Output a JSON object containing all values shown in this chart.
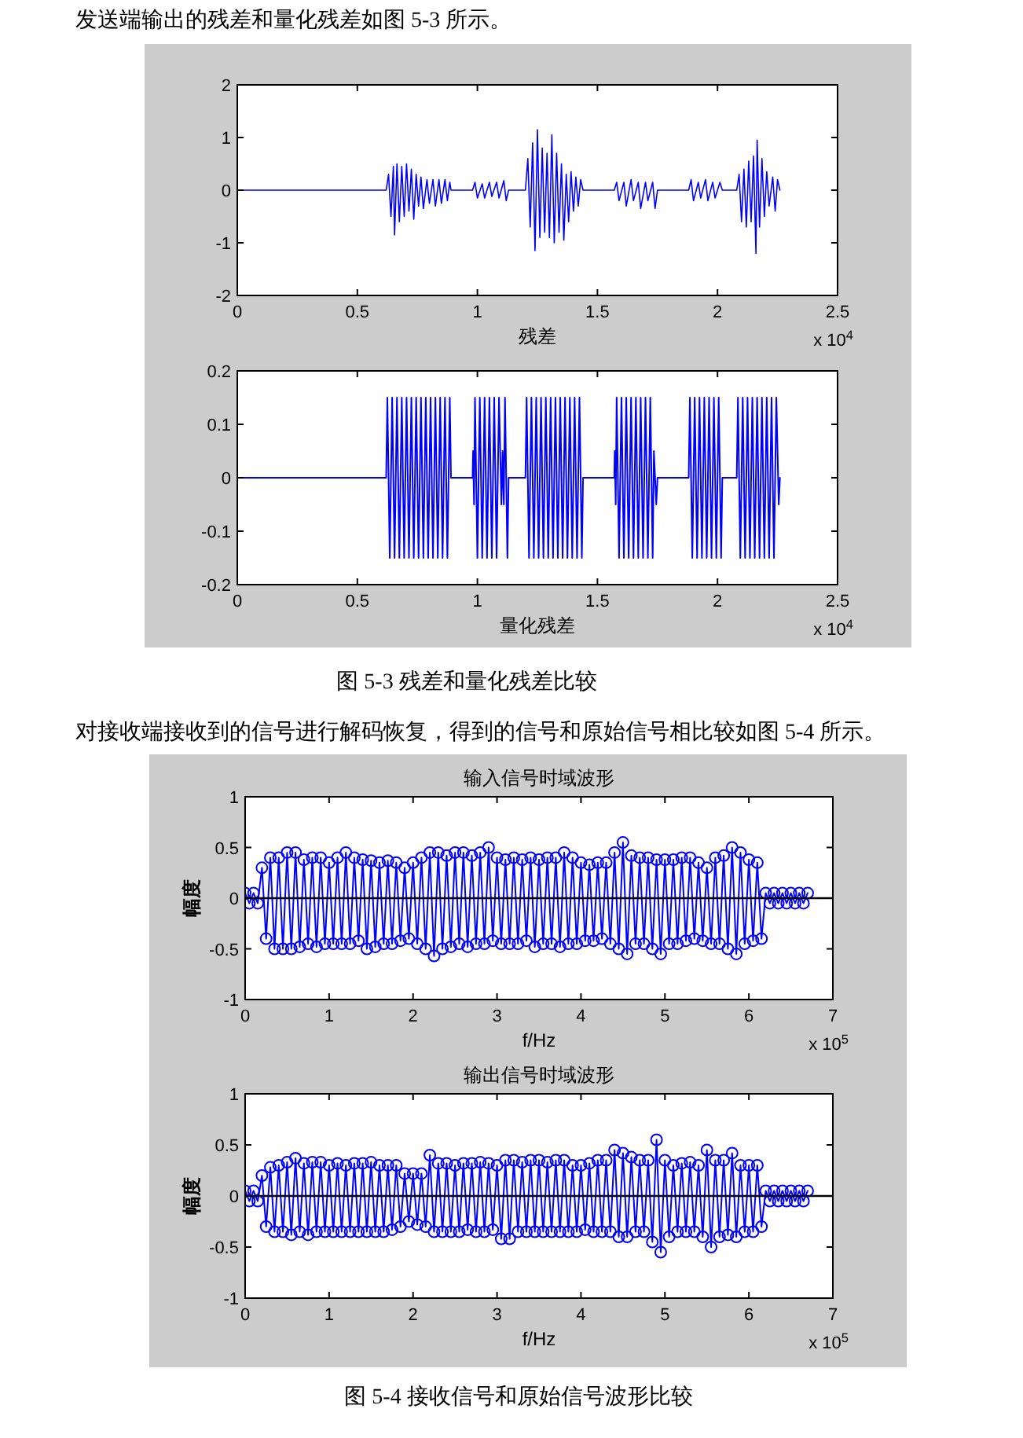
{
  "chart_data": [
    {
      "type": "line",
      "xlabel": "残差",
      "xlim": [
        0,
        2.5
      ],
      "ylim": [
        -2,
        2
      ],
      "xticks": [
        0,
        0.5,
        1,
        1.5,
        2,
        2.5
      ],
      "yticks": [
        -2,
        -1,
        0,
        1,
        2
      ],
      "annotations": [
        "x 10$^{4}$",
        "发送端输出的残差和量化残差如图 5-3 所示。"
      ],
      "series": [
        {
          "color": "#0000ff",
          "x": [
            0,
            0.62,
            0.63,
            0.64,
            0.65,
            0.655,
            0.665,
            0.675,
            0.685,
            0.695,
            0.705,
            0.715,
            0.725,
            0.735,
            0.745,
            0.755,
            0.765,
            0.775,
            0.79,
            0.8,
            0.815,
            0.825,
            0.84,
            0.85,
            0.865,
            0.875,
            0.885,
            0.89,
            0.98,
            0.99,
            1.0,
            1.02,
            1.03,
            1.05,
            1.06,
            1.08,
            1.09,
            1.11,
            1.12,
            1.13,
            1.2,
            1.21,
            1.22,
            1.23,
            1.24,
            1.25,
            1.26,
            1.27,
            1.28,
            1.29,
            1.3,
            1.31,
            1.32,
            1.33,
            1.34,
            1.35,
            1.36,
            1.37,
            1.38,
            1.39,
            1.4,
            1.41,
            1.42,
            1.43,
            1.44,
            1.57,
            1.58,
            1.59,
            1.61,
            1.62,
            1.64,
            1.65,
            1.67,
            1.68,
            1.7,
            1.71,
            1.73,
            1.74,
            1.75,
            1.88,
            1.89,
            1.9,
            1.92,
            1.93,
            1.95,
            1.96,
            1.98,
            1.99,
            2.01,
            2.02,
            2.08,
            2.09,
            2.1,
            2.11,
            2.12,
            2.13,
            2.14,
            2.15,
            2.16,
            2.165,
            2.175,
            2.185,
            2.195,
            2.205,
            2.215,
            2.23,
            2.24,
            2.25,
            2.26
          ],
          "values": [
            0,
            0,
            0.3,
            -0.5,
            0.45,
            -0.85,
            0.5,
            -0.6,
            0.45,
            -0.5,
            0.5,
            -0.4,
            0.4,
            -0.55,
            0.3,
            -0.3,
            0.25,
            -0.35,
            0.2,
            -0.25,
            0.2,
            -0.3,
            0.2,
            -0.25,
            0.2,
            -0.2,
            0.15,
            0,
            0,
            0.15,
            -0.15,
            0.12,
            -0.15,
            0.15,
            -0.12,
            0.15,
            -0.15,
            0.18,
            -0.2,
            0,
            0,
            0.6,
            -0.7,
            0.9,
            -1.15,
            1.15,
            -0.9,
            0.8,
            -0.8,
            0.7,
            -0.9,
            1.05,
            -1.0,
            0.7,
            -0.8,
            0.5,
            -0.95,
            0.3,
            -0.6,
            0.35,
            -0.4,
            0.25,
            -0.3,
            0.2,
            0,
            0,
            0.15,
            -0.2,
            0.15,
            -0.3,
            0.2,
            -0.2,
            0.15,
            -0.35,
            0.15,
            -0.2,
            0.15,
            -0.35,
            0,
            0,
            0.2,
            -0.2,
            0.15,
            -0.15,
            0.2,
            -0.2,
            0.15,
            -0.15,
            0.15,
            0,
            0,
            0.3,
            -0.6,
            0.4,
            -0.7,
            0.55,
            -0.6,
            0.65,
            -1.2,
            0.95,
            -0.7,
            0.6,
            -0.5,
            0.35,
            -0.3,
            0.25,
            -0.4,
            0.2,
            0
          ]
        }
      ]
    },
    {
      "type": "line",
      "xlabel": "量化残差",
      "xlim": [
        0,
        2.5
      ],
      "ylim": [
        -0.2,
        0.2
      ],
      "xticks": [
        0,
        0.5,
        1,
        1.5,
        2,
        2.5
      ],
      "yticks": [
        -0.2,
        -0.1,
        0,
        0.1,
        0.2
      ],
      "annotations": [
        "x 10$^{4}$",
        "图 5-3 残差和量化残差比较"
      ],
      "series": [
        {
          "color": "#0000ff",
          "x": [
            0,
            0.62,
            0.625,
            0.635,
            0.645,
            0.655,
            0.665,
            0.675,
            0.685,
            0.695,
            0.705,
            0.715,
            0.725,
            0.735,
            0.745,
            0.755,
            0.765,
            0.775,
            0.785,
            0.795,
            0.805,
            0.815,
            0.825,
            0.835,
            0.845,
            0.855,
            0.865,
            0.875,
            0.885,
            0.89,
            0.98,
            0.982,
            0.986,
            0.99,
            1.0,
            1.01,
            1.02,
            1.03,
            1.04,
            1.05,
            1.06,
            1.07,
            1.08,
            1.09,
            1.1,
            1.105,
            1.11,
            1.115,
            1.125,
            1.13,
            1.2,
            1.205,
            1.215,
            1.225,
            1.235,
            1.245,
            1.255,
            1.265,
            1.275,
            1.285,
            1.295,
            1.305,
            1.315,
            1.325,
            1.335,
            1.345,
            1.355,
            1.365,
            1.375,
            1.385,
            1.395,
            1.405,
            1.415,
            1.425,
            1.435,
            1.44,
            1.57,
            1.572,
            1.576,
            1.58,
            1.59,
            1.6,
            1.61,
            1.62,
            1.63,
            1.64,
            1.65,
            1.66,
            1.67,
            1.68,
            1.69,
            1.7,
            1.71,
            1.72,
            1.73,
            1.735,
            1.745,
            1.75,
            1.88,
            1.885,
            1.895,
            1.905,
            1.915,
            1.925,
            1.935,
            1.945,
            1.955,
            1.965,
            1.975,
            1.985,
            1.995,
            2.005,
            2.015,
            2.02,
            2.08,
            2.085,
            2.095,
            2.105,
            2.115,
            2.125,
            2.135,
            2.145,
            2.155,
            2.165,
            2.175,
            2.185,
            2.195,
            2.205,
            2.215,
            2.225,
            2.235,
            2.245,
            2.25,
            2.255,
            2.26
          ],
          "values": [
            0,
            0,
            0.15,
            -0.15,
            0.15,
            -0.15,
            0.15,
            -0.15,
            0.15,
            -0.15,
            0.15,
            -0.15,
            0.15,
            -0.15,
            0.15,
            -0.15,
            0.15,
            -0.15,
            0.15,
            -0.15,
            0.15,
            -0.15,
            0.15,
            -0.15,
            0.15,
            -0.15,
            0.15,
            -0.15,
            0.15,
            0,
            0,
            0.05,
            -0.05,
            0.15,
            -0.15,
            0.15,
            -0.15,
            0.15,
            -0.15,
            0.15,
            -0.15,
            0.15,
            -0.15,
            0.15,
            -0.05,
            0.05,
            -0.05,
            0.15,
            -0.15,
            0,
            0,
            0.15,
            -0.15,
            0.15,
            -0.15,
            0.15,
            -0.15,
            0.15,
            -0.15,
            0.15,
            -0.15,
            0.15,
            -0.15,
            0.15,
            -0.15,
            0.15,
            -0.15,
            0.15,
            -0.15,
            0.15,
            -0.15,
            0.15,
            -0.15,
            0.15,
            -0.15,
            0,
            0,
            0.05,
            -0.05,
            0.15,
            -0.15,
            0.15,
            -0.15,
            0.15,
            -0.15,
            0.15,
            -0.15,
            0.15,
            -0.15,
            0.15,
            -0.15,
            0.15,
            -0.15,
            0.15,
            -0.15,
            0.05,
            -0.05,
            0,
            0,
            0.15,
            -0.15,
            0.15,
            -0.15,
            0.15,
            -0.15,
            0.15,
            -0.15,
            0.15,
            -0.15,
            0.15,
            -0.15,
            0.15,
            -0.15,
            0,
            0,
            0.15,
            -0.15,
            0.15,
            -0.15,
            0.15,
            -0.15,
            0.15,
            -0.15,
            0.15,
            -0.15,
            0.15,
            -0.15,
            0.15,
            -0.15,
            0.15,
            -0.15,
            0.15,
            0.05,
            -0.05,
            0
          ]
        }
      ]
    },
    {
      "type": "line",
      "title": "输入信号时域波形",
      "xlabel": "f/Hz",
      "ylabel": "幅度",
      "xlim": [
        0,
        7
      ],
      "ylim": [
        -1,
        1
      ],
      "xticks": [
        0,
        1,
        2,
        3,
        4,
        5,
        6,
        7
      ],
      "yticks": [
        -1,
        -0.5,
        0,
        0.5,
        1
      ],
      "marker": "circle",
      "ref_lines": [
        {
          "axis": "y",
          "value": 0,
          "color": "#000000"
        }
      ],
      "annotations": [
        "x 10$^{5}$",
        "对接收端接收到的信号进行解码恢复，得到的信号和原始信号相比较如图 5-4 所示。"
      ],
      "series": [
        {
          "color": "#0000ff",
          "x": [
            0,
            0.05,
            0.1,
            0.15,
            0.2,
            0.25,
            0.3,
            0.35,
            0.4,
            0.45,
            0.5,
            0.55,
            0.6,
            0.65,
            0.7,
            0.75,
            0.8,
            0.85,
            0.9,
            0.95,
            1.0,
            1.05,
            1.1,
            1.15,
            1.2,
            1.25,
            1.3,
            1.35,
            1.4,
            1.45,
            1.5,
            1.55,
            1.6,
            1.65,
            1.7,
            1.75,
            1.8,
            1.85,
            1.9,
            1.95,
            2.0,
            2.05,
            2.1,
            2.15,
            2.2,
            2.25,
            2.3,
            2.35,
            2.4,
            2.45,
            2.5,
            2.55,
            2.6,
            2.65,
            2.7,
            2.75,
            2.8,
            2.85,
            2.9,
            2.95,
            3.0,
            3.05,
            3.1,
            3.15,
            3.2,
            3.25,
            3.3,
            3.35,
            3.4,
            3.45,
            3.5,
            3.55,
            3.6,
            3.65,
            3.7,
            3.75,
            3.8,
            3.85,
            3.9,
            3.95,
            4.0,
            4.05,
            4.1,
            4.15,
            4.2,
            4.25,
            4.3,
            4.35,
            4.4,
            4.45,
            4.5,
            4.55,
            4.6,
            4.65,
            4.7,
            4.75,
            4.8,
            4.85,
            4.9,
            4.95,
            5.0,
            5.05,
            5.1,
            5.15,
            5.2,
            5.25,
            5.3,
            5.35,
            5.4,
            5.45,
            5.5,
            5.55,
            5.6,
            5.65,
            5.7,
            5.75,
            5.8,
            5.85,
            5.9,
            5.95,
            6.0,
            6.05,
            6.1,
            6.15,
            6.2,
            6.25,
            6.3,
            6.35,
            6.4,
            6.45,
            6.5,
            6.55,
            6.6,
            6.65,
            6.7
          ],
          "values": [
            0.05,
            -0.05,
            0.05,
            -0.05,
            0.3,
            -0.4,
            0.4,
            -0.5,
            0.4,
            -0.5,
            0.45,
            -0.5,
            0.45,
            -0.48,
            0.38,
            -0.45,
            0.4,
            -0.48,
            0.4,
            -0.45,
            0.35,
            -0.45,
            0.4,
            -0.45,
            0.45,
            -0.45,
            0.4,
            -0.42,
            0.38,
            -0.5,
            0.37,
            -0.48,
            0.35,
            -0.45,
            0.37,
            -0.45,
            0.35,
            -0.42,
            0.3,
            -0.4,
            0.35,
            -0.45,
            0.4,
            -0.5,
            0.45,
            -0.57,
            0.45,
            -0.5,
            0.42,
            -0.48,
            0.45,
            -0.45,
            0.45,
            -0.48,
            0.42,
            -0.45,
            0.45,
            -0.45,
            0.5,
            -0.42,
            0.4,
            -0.45,
            0.38,
            -0.45,
            0.4,
            -0.45,
            0.38,
            -0.42,
            0.4,
            -0.48,
            0.38,
            -0.45,
            0.4,
            -0.45,
            0.4,
            -0.48,
            0.45,
            -0.45,
            0.4,
            -0.45,
            0.35,
            -0.42,
            0.33,
            -0.42,
            0.35,
            -0.4,
            0.35,
            -0.45,
            0.45,
            -0.5,
            0.55,
            -0.55,
            0.42,
            -0.45,
            0.4,
            -0.45,
            0.4,
            -0.5,
            0.38,
            -0.55,
            0.38,
            -0.45,
            0.38,
            -0.45,
            0.4,
            -0.42,
            0.4,
            -0.4,
            0.35,
            -0.42,
            0.3,
            -0.45,
            0.4,
            -0.45,
            0.42,
            -0.5,
            0.5,
            -0.55,
            0.45,
            -0.45,
            0.38,
            -0.42,
            0.35,
            -0.4,
            0.05,
            -0.05,
            0.05,
            -0.05,
            0.05,
            -0.05,
            0.05,
            -0.05,
            0.05,
            -0.05,
            0.05
          ]
        }
      ]
    },
    {
      "type": "line",
      "title": "输出信号时域波形",
      "xlabel": "f/Hz",
      "ylabel": "幅度",
      "xlim": [
        0,
        7
      ],
      "ylim": [
        -1,
        1
      ],
      "xticks": [
        0,
        1,
        2,
        3,
        4,
        5,
        6,
        7
      ],
      "yticks": [
        -1,
        -0.5,
        0,
        0.5,
        1
      ],
      "marker": "circle",
      "ref_lines": [
        {
          "axis": "y",
          "value": 0,
          "color": "#000000"
        }
      ],
      "annotations": [
        "x 10$^{5}$",
        "图 5-4 接收信号和原始信号波形比较"
      ],
      "series": [
        {
          "color": "#0000ff",
          "x": [
            0,
            0.05,
            0.1,
            0.15,
            0.2,
            0.25,
            0.3,
            0.35,
            0.4,
            0.45,
            0.5,
            0.55,
            0.6,
            0.65,
            0.7,
            0.75,
            0.8,
            0.85,
            0.9,
            0.95,
            1.0,
            1.05,
            1.1,
            1.15,
            1.2,
            1.25,
            1.3,
            1.35,
            1.4,
            1.45,
            1.5,
            1.55,
            1.6,
            1.65,
            1.7,
            1.75,
            1.8,
            1.85,
            1.9,
            1.95,
            2.0,
            2.05,
            2.1,
            2.15,
            2.2,
            2.25,
            2.3,
            2.35,
            2.4,
            2.45,
            2.5,
            2.55,
            2.6,
            2.65,
            2.7,
            2.75,
            2.8,
            2.85,
            2.9,
            2.95,
            3.0,
            3.05,
            3.1,
            3.15,
            3.2,
            3.25,
            3.3,
            3.35,
            3.4,
            3.45,
            3.5,
            3.55,
            3.6,
            3.65,
            3.7,
            3.75,
            3.8,
            3.85,
            3.9,
            3.95,
            4.0,
            4.05,
            4.1,
            4.15,
            4.2,
            4.25,
            4.3,
            4.35,
            4.4,
            4.45,
            4.5,
            4.55,
            4.6,
            4.65,
            4.7,
            4.75,
            4.8,
            4.85,
            4.9,
            4.95,
            5.0,
            5.05,
            5.1,
            5.15,
            5.2,
            5.25,
            5.3,
            5.35,
            5.4,
            5.45,
            5.5,
            5.55,
            5.6,
            5.65,
            5.7,
            5.75,
            5.8,
            5.85,
            5.9,
            5.95,
            6.0,
            6.05,
            6.1,
            6.15,
            6.2,
            6.25,
            6.3,
            6.35,
            6.4,
            6.45,
            6.5,
            6.55,
            6.6,
            6.65,
            6.7
          ],
          "values": [
            0.05,
            -0.05,
            0.05,
            -0.05,
            0.2,
            -0.3,
            0.28,
            -0.35,
            0.3,
            -0.35,
            0.33,
            -0.38,
            0.37,
            -0.35,
            0.32,
            -0.38,
            0.33,
            -0.35,
            0.33,
            -0.35,
            0.3,
            -0.35,
            0.32,
            -0.35,
            0.3,
            -0.35,
            0.32,
            -0.35,
            0.32,
            -0.35,
            0.33,
            -0.35,
            0.3,
            -0.35,
            0.3,
            -0.33,
            0.3,
            -0.3,
            0.22,
            -0.25,
            0.22,
            -0.28,
            0.22,
            -0.3,
            0.4,
            -0.35,
            0.32,
            -0.35,
            0.32,
            -0.35,
            0.3,
            -0.35,
            0.32,
            -0.33,
            0.32,
            -0.35,
            0.33,
            -0.35,
            0.32,
            -0.33,
            0.3,
            -0.42,
            0.35,
            -0.42,
            0.35,
            -0.35,
            0.33,
            -0.35,
            0.35,
            -0.35,
            0.35,
            -0.35,
            0.33,
            -0.35,
            0.35,
            -0.35,
            0.35,
            -0.35,
            0.3,
            -0.35,
            0.3,
            -0.33,
            0.32,
            -0.35,
            0.35,
            -0.35,
            0.35,
            -0.35,
            0.45,
            -0.4,
            0.42,
            -0.4,
            0.38,
            -0.35,
            0.35,
            -0.35,
            0.35,
            -0.45,
            0.55,
            -0.55,
            0.35,
            -0.4,
            0.3,
            -0.35,
            0.32,
            -0.35,
            0.33,
            -0.35,
            0.3,
            -0.4,
            0.45,
            -0.5,
            0.35,
            -0.4,
            0.35,
            -0.38,
            0.42,
            -0.4,
            0.3,
            -0.35,
            0.3,
            -0.35,
            0.3,
            -0.3,
            0.05,
            -0.05,
            0.05,
            -0.05,
            0.05,
            -0.05,
            0.05,
            -0.05,
            0.05,
            -0.05,
            0.05
          ]
        }
      ]
    }
  ]
}
